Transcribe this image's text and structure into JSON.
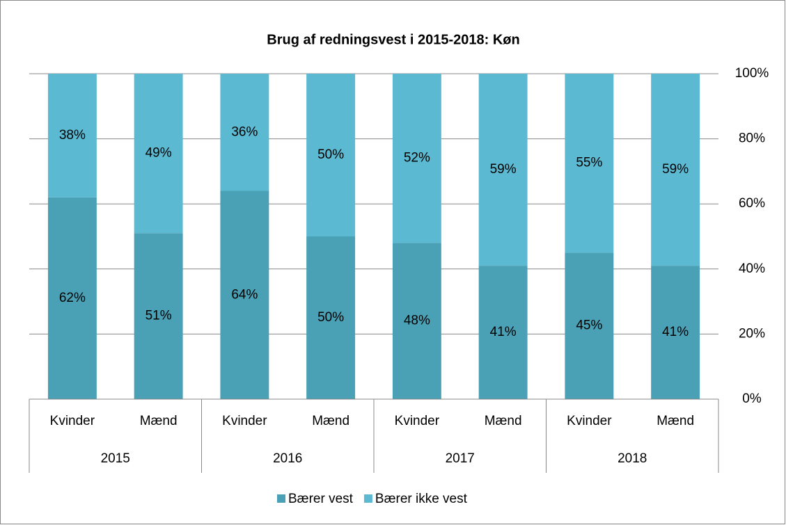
{
  "chart_data": {
    "type": "stacked_bar",
    "title": "Brug af redningsvest i 2015-2018: Køn",
    "categories": [
      "Kvinder",
      "Mænd",
      "Kvinder",
      "Mænd",
      "Kvinder",
      "Mænd",
      "Kvinder",
      "Mænd"
    ],
    "category_groups": [
      "2015",
      "2016",
      "2017",
      "2018"
    ],
    "series": [
      {
        "name": "Bærer vest",
        "color": "#4aa0b5",
        "values": [
          62,
          51,
          64,
          50,
          48,
          41,
          45,
          41
        ],
        "value_labels": [
          "62%",
          "51%",
          "64%",
          "50%",
          "48%",
          "41%",
          "45%",
          "41%"
        ]
      },
      {
        "name": "Bærer ikke vest",
        "color": "#5cb9d2",
        "values": [
          38,
          49,
          36,
          50,
          52,
          59,
          55,
          59
        ],
        "value_labels": [
          "38%",
          "49%",
          "36%",
          "50%",
          "52%",
          "59%",
          "55%",
          "59%"
        ]
      }
    ],
    "ylim": [
      0,
      100
    ],
    "yticks": [
      {
        "value": 0,
        "label": "0%"
      },
      {
        "value": 20,
        "label": "20%"
      },
      {
        "value": 40,
        "label": "40%"
      },
      {
        "value": 60,
        "label": "60%"
      },
      {
        "value": 80,
        "label": "80%"
      },
      {
        "value": 100,
        "label": "100%"
      }
    ],
    "y_axis_side": "right",
    "grid": true,
    "legend": "bottom"
  }
}
